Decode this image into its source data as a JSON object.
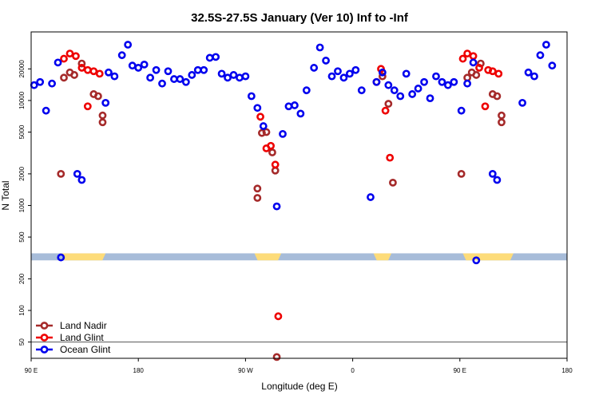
{
  "chart_data": {
    "type": "scatter",
    "title": "32.5S-27.5S January (Ver 10)   Inf to -Inf",
    "xlabel": "Longitude (deg E)",
    "ylabel": "N Total",
    "xlim": [
      90,
      450
    ],
    "ylim": [
      35,
      45000
    ],
    "y_scale": "log",
    "x_ticks": [
      {
        "value": 90,
        "label": "90 E"
      },
      {
        "value": 162,
        "label": "180"
      },
      {
        "value": 234,
        "label": "90 W"
      },
      {
        "value": 306,
        "label": "0"
      },
      {
        "value": 378,
        "label": "90 E"
      },
      {
        "value": 450,
        "label": "180"
      }
    ],
    "y_ticks": [
      {
        "value": 50,
        "label": "50"
      },
      {
        "value": 100,
        "label": "100"
      },
      {
        "value": 200,
        "label": "200"
      },
      {
        "value": 500,
        "label": "500"
      },
      {
        "value": 1000,
        "label": "1000"
      },
      {
        "value": 2000,
        "label": "2000"
      },
      {
        "value": 5000,
        "label": "5000"
      },
      {
        "value": 10000,
        "label": "10000"
      },
      {
        "value": 20000,
        "label": "20000"
      }
    ],
    "reference_line_y": 50,
    "land_ocean_strip": {
      "y_range": [
        300,
        350
      ],
      "ocean_color": "#a7bcd9",
      "land_color": "#fddc7a",
      "land_segments": [
        [
          110,
          140
        ],
        [
          240,
          258
        ],
        [
          320,
          332
        ],
        [
          380,
          414
        ]
      ]
    },
    "legend": {
      "position": "bottom-left"
    },
    "series": [
      {
        "name": "Land Nadir",
        "color": "#a52a2a",
        "points": [
          [
            110,
            2000
          ],
          [
            112,
            16500
          ],
          [
            116,
            18500
          ],
          [
            119,
            17500
          ],
          [
            124,
            22500
          ],
          [
            132,
            11500
          ],
          [
            135,
            11000
          ],
          [
            138,
            7200
          ],
          [
            138,
            6200
          ],
          [
            242,
            1450
          ],
          [
            242,
            1180
          ],
          [
            245,
            4900
          ],
          [
            248,
            5000
          ],
          [
            252,
            3200
          ],
          [
            254,
            2150
          ],
          [
            255,
            36
          ],
          [
            326,
            17000
          ],
          [
            330,
            9300
          ],
          [
            333,
            1650
          ],
          [
            379,
            2000
          ],
          [
            383,
            16500
          ],
          [
            386,
            18500
          ],
          [
            389,
            17500
          ],
          [
            392,
            22500
          ],
          [
            400,
            11500
          ],
          [
            403,
            11000
          ],
          [
            406,
            7200
          ],
          [
            406,
            6200
          ]
        ]
      },
      {
        "name": "Land Glint",
        "color": "#ee0000",
        "points": [
          [
            112,
            25000
          ],
          [
            116,
            28000
          ],
          [
            120,
            26500
          ],
          [
            124,
            20500
          ],
          [
            128,
            8800
          ],
          [
            128,
            19500
          ],
          [
            132,
            19000
          ],
          [
            136,
            18000
          ],
          [
            244,
            7000
          ],
          [
            248,
            3500
          ],
          [
            251,
            3700
          ],
          [
            254,
            2450
          ],
          [
            256,
            88
          ],
          [
            322,
            15000
          ],
          [
            325,
            20000
          ],
          [
            328,
            8000
          ],
          [
            331,
            2850
          ],
          [
            380,
            25000
          ],
          [
            383,
            28000
          ],
          [
            387,
            26500
          ],
          [
            391,
            20500
          ],
          [
            395,
            8800
          ],
          [
            397,
            19500
          ],
          [
            400,
            19000
          ],
          [
            404,
            18000
          ]
        ]
      },
      {
        "name": "Ocean Glint",
        "color": "#0000ee",
        "points": [
          [
            92,
            14000
          ],
          [
            96,
            15000
          ],
          [
            100,
            8000
          ],
          [
            104,
            14500
          ],
          [
            108,
            23000
          ],
          [
            110,
            320
          ],
          [
            121,
            2000
          ],
          [
            124,
            1750
          ],
          [
            140,
            9500
          ],
          [
            142,
            18500
          ],
          [
            146,
            17000
          ],
          [
            151,
            27000
          ],
          [
            155,
            34000
          ],
          [
            158,
            21500
          ],
          [
            162,
            20500
          ],
          [
            166,
            22000
          ],
          [
            170,
            16500
          ],
          [
            174,
            19500
          ],
          [
            178,
            14500
          ],
          [
            182,
            19000
          ],
          [
            186,
            16000
          ],
          [
            190,
            16000
          ],
          [
            194,
            15000
          ],
          [
            198,
            17500
          ],
          [
            202,
            19500
          ],
          [
            206,
            19500
          ],
          [
            210,
            25500
          ],
          [
            214,
            26000
          ],
          [
            218,
            18000
          ],
          [
            222,
            16500
          ],
          [
            226,
            17500
          ],
          [
            230,
            16500
          ],
          [
            234,
            17000
          ],
          [
            238,
            11000
          ],
          [
            242,
            8500
          ],
          [
            246,
            5700
          ],
          [
            255,
            980
          ],
          [
            259,
            4800
          ],
          [
            263,
            8800
          ],
          [
            267,
            9000
          ],
          [
            271,
            7500
          ],
          [
            275,
            12500
          ],
          [
            280,
            20500
          ],
          [
            284,
            32000
          ],
          [
            288,
            24000
          ],
          [
            292,
            17000
          ],
          [
            296,
            19000
          ],
          [
            300,
            16500
          ],
          [
            304,
            18000
          ],
          [
            308,
            19500
          ],
          [
            312,
            12500
          ],
          [
            318,
            1200
          ],
          [
            322,
            15000
          ],
          [
            326,
            18500
          ],
          [
            330,
            14000
          ],
          [
            334,
            12500
          ],
          [
            338,
            11000
          ],
          [
            342,
            18000
          ],
          [
            346,
            11500
          ],
          [
            350,
            13000
          ],
          [
            354,
            15000
          ],
          [
            358,
            10500
          ],
          [
            362,
            17000
          ],
          [
            366,
            15000
          ],
          [
            370,
            14000
          ],
          [
            374,
            15000
          ],
          [
            379,
            8000
          ],
          [
            383,
            14500
          ],
          [
            387,
            23000
          ],
          [
            389,
            300
          ],
          [
            400,
            2000
          ],
          [
            403,
            1750
          ],
          [
            420,
            9500
          ],
          [
            424,
            18500
          ],
          [
            428,
            17000
          ],
          [
            432,
            27000
          ],
          [
            436,
            34000
          ],
          [
            440,
            21500
          ]
        ]
      }
    ]
  }
}
